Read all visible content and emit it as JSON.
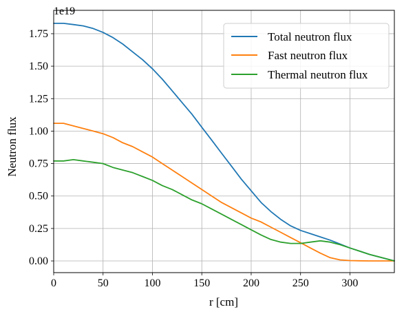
{
  "chart_data": {
    "type": "line",
    "title": "",
    "xlabel": "r [cm]",
    "ylabel": "Neutron flux",
    "y_offset_label": "1e19",
    "xlim": [
      0,
      345
    ],
    "ylim": [
      -0.09,
      1.93
    ],
    "xticks": [
      0,
      50,
      100,
      150,
      200,
      250,
      300
    ],
    "xtick_labels": [
      "0",
      "50",
      "100",
      "150",
      "200",
      "250",
      "300"
    ],
    "yticks": [
      0.0,
      0.25,
      0.5,
      0.75,
      1.0,
      1.25,
      1.5,
      1.75
    ],
    "ytick_labels": [
      "0.00",
      "0.25",
      "0.50",
      "0.75",
      "1.00",
      "1.25",
      "1.50",
      "1.75"
    ],
    "grid": true,
    "legend_position": "top-right",
    "series": [
      {
        "name": "Total neutron flux",
        "color": "#1f77b4",
        "x": [
          0,
          10,
          20,
          30,
          40,
          50,
          60,
          70,
          80,
          90,
          100,
          110,
          120,
          130,
          140,
          150,
          160,
          170,
          180,
          190,
          200,
          210,
          220,
          230,
          240,
          250,
          260,
          270,
          280,
          290,
          300,
          310,
          320,
          330,
          345
        ],
        "y": [
          1.83,
          1.83,
          1.82,
          1.81,
          1.79,
          1.76,
          1.72,
          1.67,
          1.61,
          1.55,
          1.48,
          1.4,
          1.31,
          1.22,
          1.13,
          1.03,
          0.93,
          0.83,
          0.73,
          0.63,
          0.54,
          0.45,
          0.38,
          0.32,
          0.27,
          0.235,
          0.21,
          0.185,
          0.16,
          0.13,
          0.1,
          0.075,
          0.05,
          0.03,
          0.0
        ]
      },
      {
        "name": "Fast neutron flux",
        "color": "#ff7f0e",
        "x": [
          0,
          10,
          20,
          30,
          40,
          50,
          60,
          70,
          80,
          90,
          100,
          110,
          120,
          130,
          140,
          150,
          160,
          170,
          180,
          190,
          200,
          210,
          220,
          230,
          240,
          250,
          260,
          270,
          280,
          290,
          300,
          310,
          320,
          330,
          345
        ],
        "y": [
          1.06,
          1.06,
          1.04,
          1.02,
          1.0,
          0.98,
          0.95,
          0.91,
          0.88,
          0.84,
          0.8,
          0.75,
          0.7,
          0.65,
          0.6,
          0.55,
          0.5,
          0.45,
          0.41,
          0.37,
          0.33,
          0.3,
          0.26,
          0.22,
          0.18,
          0.14,
          0.1,
          0.06,
          0.025,
          0.008,
          0.003,
          0.001,
          0.0,
          0.0,
          0.0
        ]
      },
      {
        "name": "Thermal neutron flux",
        "color": "#2ca02c",
        "x": [
          0,
          10,
          20,
          30,
          40,
          50,
          60,
          70,
          80,
          90,
          100,
          110,
          120,
          130,
          140,
          150,
          160,
          170,
          180,
          190,
          200,
          210,
          220,
          230,
          240,
          250,
          260,
          270,
          280,
          290,
          300,
          310,
          320,
          330,
          345
        ],
        "y": [
          0.77,
          0.77,
          0.78,
          0.77,
          0.76,
          0.75,
          0.72,
          0.7,
          0.68,
          0.65,
          0.62,
          0.58,
          0.55,
          0.51,
          0.47,
          0.44,
          0.4,
          0.36,
          0.32,
          0.28,
          0.24,
          0.2,
          0.165,
          0.145,
          0.135,
          0.135,
          0.145,
          0.155,
          0.145,
          0.125,
          0.1,
          0.075,
          0.05,
          0.03,
          0.0
        ]
      }
    ]
  }
}
